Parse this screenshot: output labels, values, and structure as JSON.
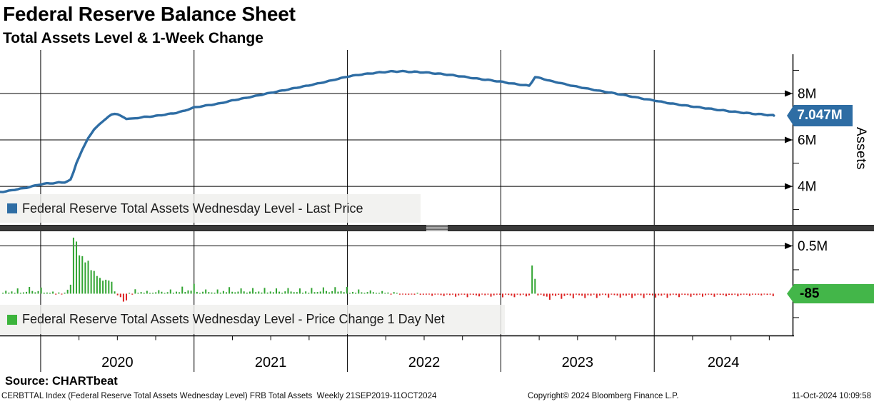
{
  "header": {
    "title": "Federal Reserve Balance Sheet",
    "subtitle": "Total Assets Level & 1-Week Change"
  },
  "footer": {
    "source": "Source: CHARTbeat",
    "meta": "CERBTTAL Index (Federal Reserve Total Assets Wednesday Level) FRB Total Assets  Weekly 21SEP2019-11OCT2024",
    "copyright": "Copyright© 2024 Bloomberg Finance L.P.",
    "datetime": "11-Oct-2024 10:09:58"
  },
  "chart_data": [
    {
      "type": "line",
      "title": "Federal Reserve Total Assets Wednesday Level - Last Price",
      "series_color": "#2e6da4",
      "ylabel": "Assets",
      "ylim": [
        2.25,
        9.69
      ],
      "x_domain_years": [
        2019.735,
        2024.902
      ],
      "x_tick_years": [
        2020,
        2021,
        2022,
        2023,
        2024
      ],
      "x_tick_labels": [
        "2020",
        "2021",
        "2022",
        "2023",
        "2024"
      ],
      "y_major_ticks": [
        {
          "v": 8,
          "label": "8M"
        },
        {
          "v": 6,
          "label": "6M"
        },
        {
          "v": 4,
          "label": "4M"
        }
      ],
      "y_minor_ticks": [
        9,
        7,
        5,
        3
      ],
      "last_price_badge": {
        "label": "7.047M",
        "value": 7.047,
        "color": "#2e6da4"
      },
      "grid": true,
      "legend_position": "bottom-left",
      "points": [
        [
          2019.735,
          3.76
        ],
        [
          2019.77,
          3.78
        ],
        [
          2019.81,
          3.83
        ],
        [
          2019.85,
          3.88
        ],
        [
          2019.9,
          3.93
        ],
        [
          2019.95,
          4.01
        ],
        [
          2020.0,
          4.09
        ],
        [
          2020.04,
          4.12
        ],
        [
          2020.08,
          4.14
        ],
        [
          2020.12,
          4.16
        ],
        [
          2020.16,
          4.17
        ],
        [
          2020.2,
          4.31
        ],
        [
          2020.23,
          4.95
        ],
        [
          2020.27,
          5.56
        ],
        [
          2020.31,
          6.08
        ],
        [
          2020.35,
          6.46
        ],
        [
          2020.39,
          6.72
        ],
        [
          2020.43,
          6.93
        ],
        [
          2020.46,
          7.1
        ],
        [
          2020.49,
          7.14
        ],
        [
          2020.52,
          7.04
        ],
        [
          2020.56,
          6.92
        ],
        [
          2020.6,
          6.91
        ],
        [
          2020.64,
          6.96
        ],
        [
          2020.7,
          7.0
        ],
        [
          2020.76,
          7.04
        ],
        [
          2020.82,
          7.1
        ],
        [
          2020.88,
          7.16
        ],
        [
          2020.94,
          7.26
        ],
        [
          2021.0,
          7.4
        ],
        [
          2021.08,
          7.48
        ],
        [
          2021.16,
          7.56
        ],
        [
          2021.25,
          7.7
        ],
        [
          2021.33,
          7.8
        ],
        [
          2021.42,
          7.92
        ],
        [
          2021.5,
          8.03
        ],
        [
          2021.58,
          8.13
        ],
        [
          2021.67,
          8.25
        ],
        [
          2021.75,
          8.35
        ],
        [
          2021.83,
          8.46
        ],
        [
          2021.92,
          8.6
        ],
        [
          2022.0,
          8.73
        ],
        [
          2022.08,
          8.81
        ],
        [
          2022.17,
          8.88
        ],
        [
          2022.25,
          8.93
        ],
        [
          2022.33,
          8.96
        ],
        [
          2022.4,
          8.94
        ],
        [
          2022.5,
          8.91
        ],
        [
          2022.58,
          8.86
        ],
        [
          2022.67,
          8.8
        ],
        [
          2022.75,
          8.73
        ],
        [
          2022.83,
          8.65
        ],
        [
          2022.92,
          8.58
        ],
        [
          2023.0,
          8.51
        ],
        [
          2023.08,
          8.42
        ],
        [
          2023.15,
          8.36
        ],
        [
          2023.19,
          8.33
        ],
        [
          2023.22,
          8.71
        ],
        [
          2023.26,
          8.66
        ],
        [
          2023.31,
          8.56
        ],
        [
          2023.38,
          8.46
        ],
        [
          2023.46,
          8.34
        ],
        [
          2023.54,
          8.24
        ],
        [
          2023.62,
          8.14
        ],
        [
          2023.7,
          8.05
        ],
        [
          2023.78,
          7.96
        ],
        [
          2023.86,
          7.86
        ],
        [
          2023.94,
          7.76
        ],
        [
          2024.0,
          7.7
        ],
        [
          2024.08,
          7.6
        ],
        [
          2024.16,
          7.52
        ],
        [
          2024.25,
          7.44
        ],
        [
          2024.33,
          7.37
        ],
        [
          2024.42,
          7.29
        ],
        [
          2024.5,
          7.23
        ],
        [
          2024.58,
          7.17
        ],
        [
          2024.66,
          7.12
        ],
        [
          2024.72,
          7.09
        ],
        [
          2024.78,
          7.047
        ]
      ]
    },
    {
      "type": "bar",
      "title": "Federal Reserve Total Assets Wednesday Level - Price Change 1 Day Net",
      "pos_color": "#31a431",
      "neg_color": "#dd2222",
      "ylim": [
        -0.437,
        0.66
      ],
      "y_major_ticks": [
        {
          "v": 0.5,
          "label": "0.5M"
        }
      ],
      "y_minor_ticks": [
        0.25,
        -0.25
      ],
      "last_change_badge": {
        "label": "-85",
        "color": "#43b649"
      },
      "bars_note": "weekly net change of the level series above; notable extremes listed explicitly",
      "notable_bars": [
        [
          2020.222,
          0.586
        ],
        [
          2020.241,
          0.545
        ],
        [
          2020.539,
          -0.083
        ],
        [
          2020.558,
          -0.07
        ],
        [
          2023.206,
          0.295
        ],
        [
          2023.225,
          0.155
        ]
      ],
      "legend_position": "bottom-left"
    }
  ]
}
